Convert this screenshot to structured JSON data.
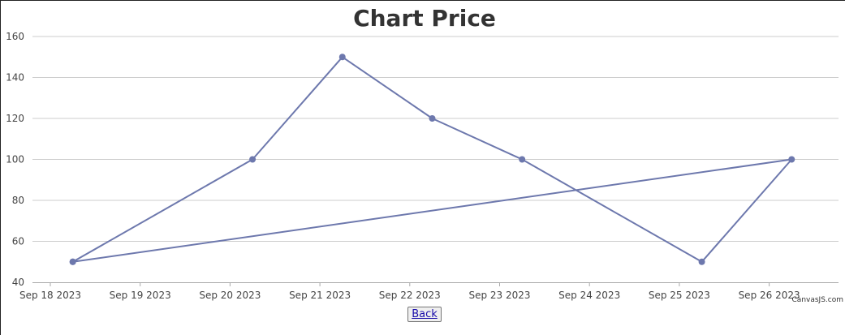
{
  "chart_data": {
    "type": "line",
    "title": "Chart Price",
    "x_tick_labels": [
      "Sep 18 2023",
      "Sep 19 2023",
      "Sep 20 2023",
      "Sep 21 2023",
      "Sep 22 2023",
      "Sep 23 2023",
      "Sep 24 2023",
      "Sep 25 2023",
      "Sep 26 2023"
    ],
    "y_tick_labels": [
      "40",
      "60",
      "80",
      "100",
      "120",
      "140",
      "160"
    ],
    "ylim": [
      40,
      160
    ],
    "xlim": [
      "2023-09-18",
      "2023-09-26"
    ],
    "grid": true,
    "line_color": "#6d78ad",
    "points": [
      {
        "x": "2023-09-18 06:00",
        "y": 50
      },
      {
        "x": "2023-09-20 06:00",
        "y": 100
      },
      {
        "x": "2023-09-21 06:00",
        "y": 150
      },
      {
        "x": "2023-09-22 06:00",
        "y": 120
      },
      {
        "x": "2023-09-23 06:00",
        "y": 100
      },
      {
        "x": "2023-09-25 06:00",
        "y": 50
      },
      {
        "x": "2023-09-26 06:00",
        "y": 100
      },
      {
        "x": "2023-09-18 06:00",
        "y": 50
      }
    ],
    "credit": "CanvasJS.com"
  },
  "nav": {
    "back_label": "Back"
  }
}
